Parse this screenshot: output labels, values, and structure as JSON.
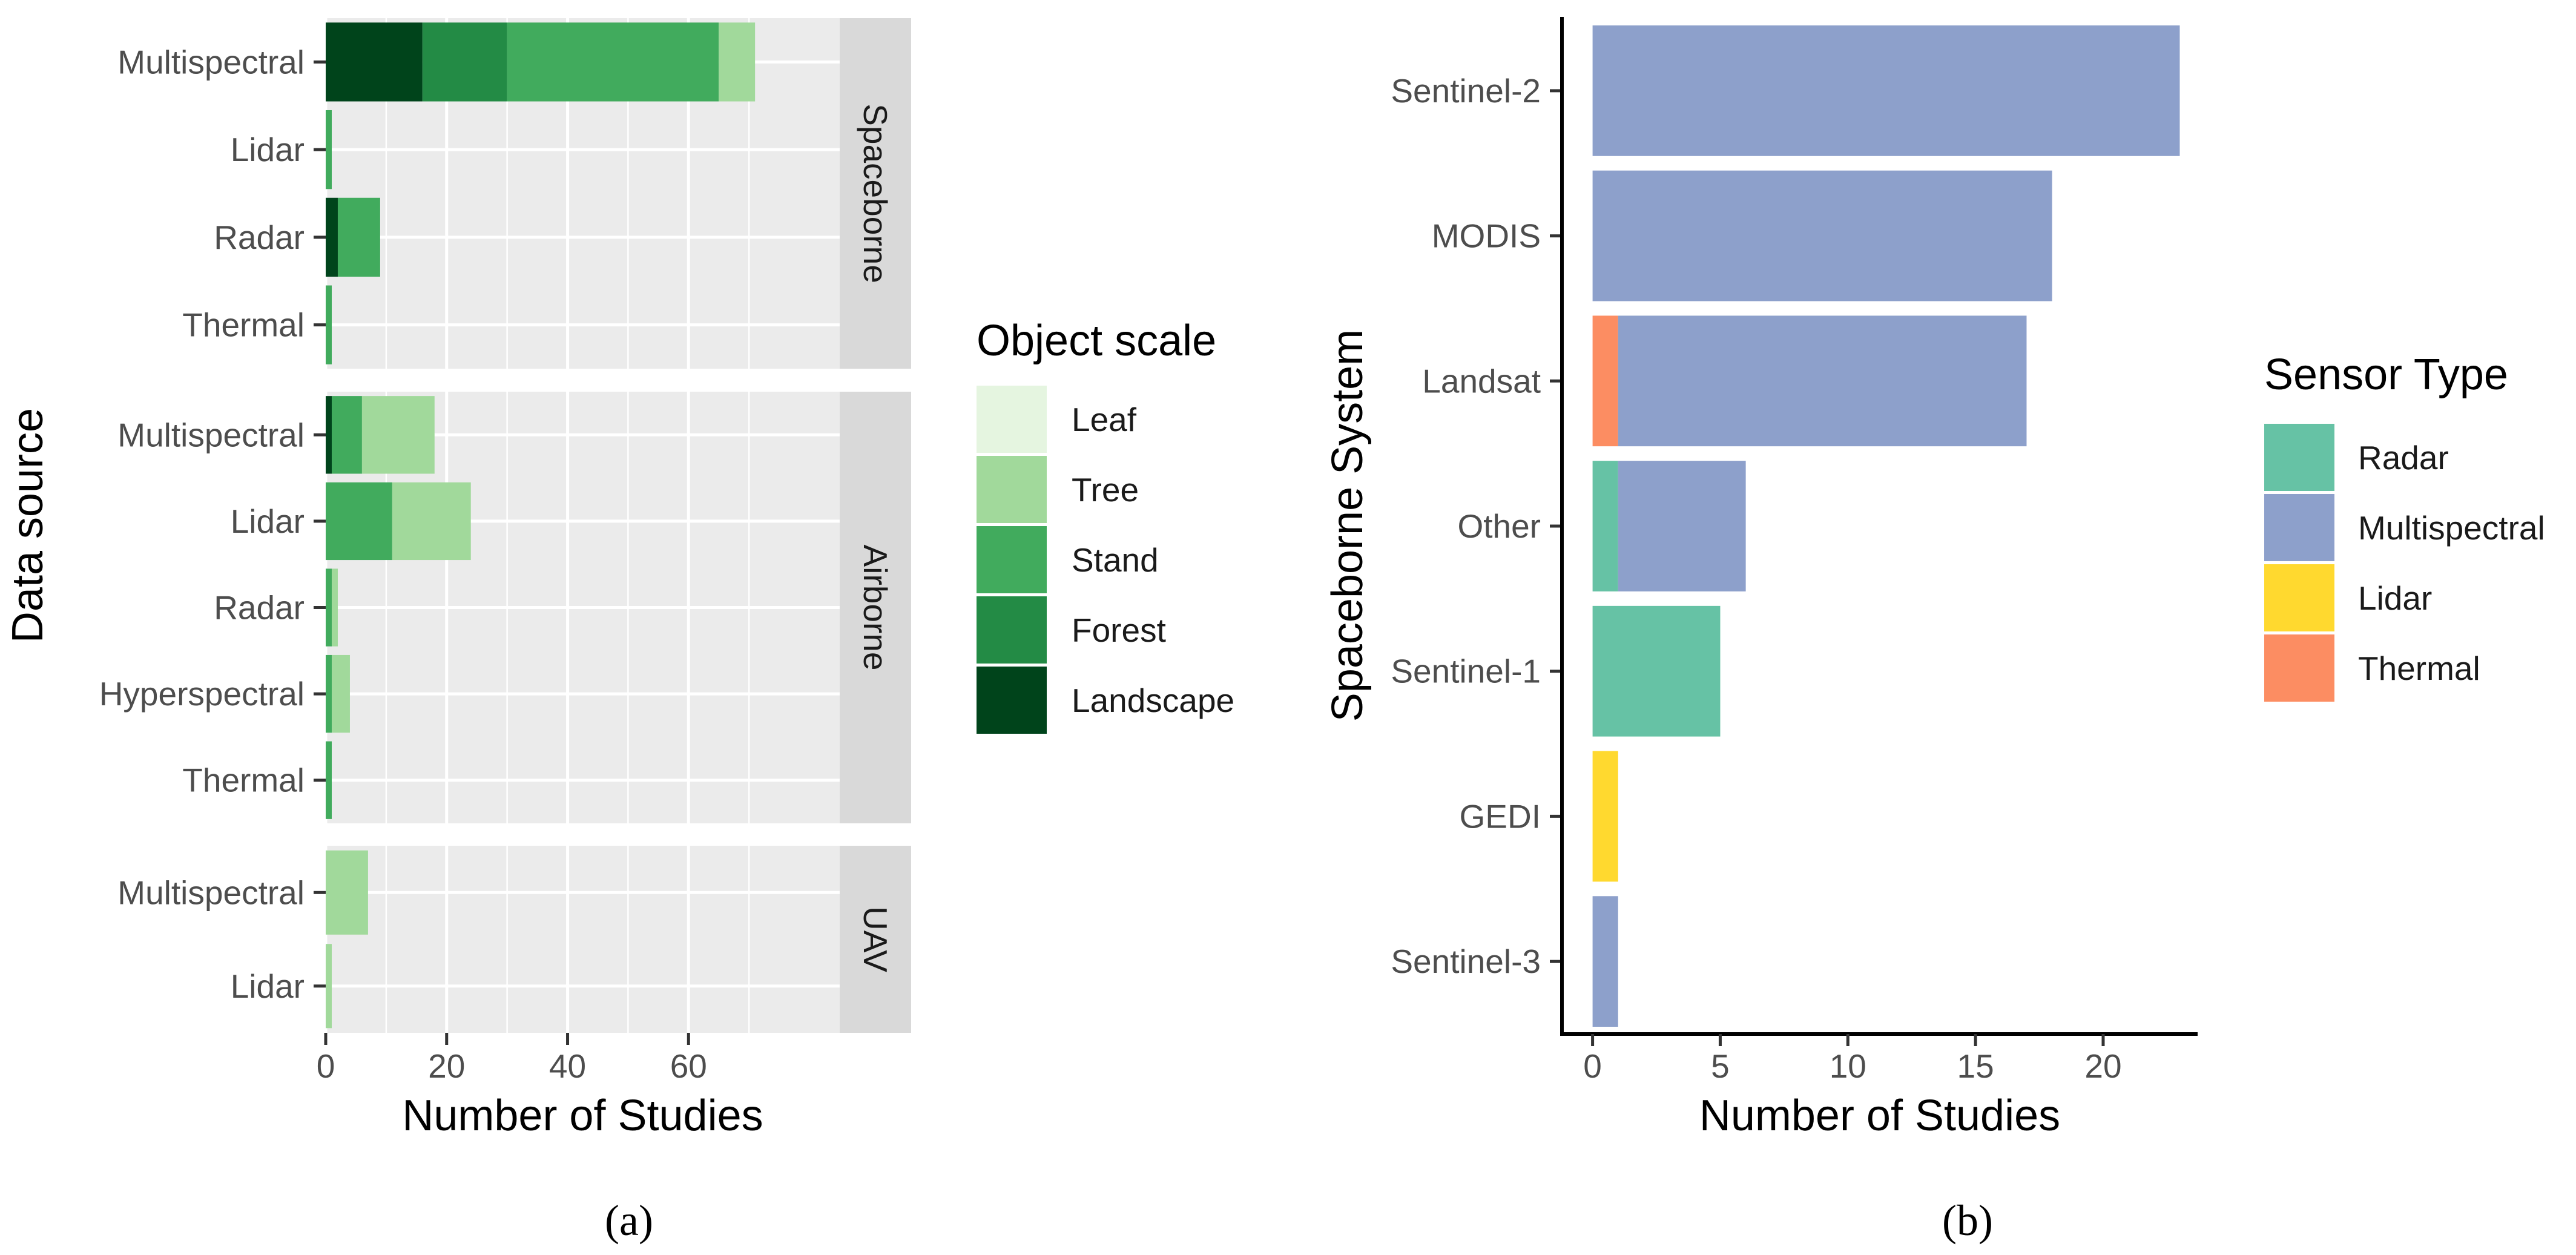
{
  "chart_data": [
    {
      "id": "a",
      "type": "bar",
      "orientation": "horizontal",
      "stacked": true,
      "xlabel": "Number of Studies",
      "ylabel": "Data source",
      "xlim": [
        0,
        85
      ],
      "x_ticks": [
        0,
        20,
        40,
        60
      ],
      "caption": "(a)",
      "legend": {
        "title": "Object scale",
        "items": [
          {
            "name": "Leaf",
            "color": "#e5f5e0"
          },
          {
            "name": "Tree",
            "color": "#a1d99b"
          },
          {
            "name": "Stand",
            "color": "#41ab5d"
          },
          {
            "name": "Forest",
            "color": "#238b45"
          },
          {
            "name": "Landscape",
            "color": "#00441b"
          }
        ]
      },
      "facets": [
        {
          "label": "Spaceborne",
          "categories": [
            "Multispectral",
            "Lidar",
            "Radar",
            "Thermal"
          ],
          "series": [
            {
              "name": "Landscape",
              "values": [
                16,
                0,
                2,
                0
              ]
            },
            {
              "name": "Forest",
              "values": [
                14,
                0,
                0,
                0
              ]
            },
            {
              "name": "Stand",
              "values": [
                35,
                1,
                7,
                1
              ]
            },
            {
              "name": "Tree",
              "values": [
                6,
                0,
                0,
                0
              ]
            },
            {
              "name": "Leaf",
              "values": [
                0,
                0,
                0,
                0
              ]
            }
          ]
        },
        {
          "label": "Airborne",
          "categories": [
            "Multispectral",
            "Lidar",
            "Radar",
            "Hyperspectral",
            "Thermal"
          ],
          "series": [
            {
              "name": "Landscape",
              "values": [
                1,
                0,
                0,
                0,
                0
              ]
            },
            {
              "name": "Forest",
              "values": [
                0,
                0,
                0,
                0,
                0
              ]
            },
            {
              "name": "Stand",
              "values": [
                5,
                11,
                1,
                1,
                1
              ]
            },
            {
              "name": "Tree",
              "values": [
                12,
                13,
                1,
                3,
                0
              ]
            },
            {
              "name": "Leaf",
              "values": [
                0,
                0,
                0,
                0,
                0
              ]
            }
          ]
        },
        {
          "label": "UAV",
          "categories": [
            "Multispectral",
            "Lidar"
          ],
          "series": [
            {
              "name": "Landscape",
              "values": [
                0,
                0
              ]
            },
            {
              "name": "Forest",
              "values": [
                0,
                0
              ]
            },
            {
              "name": "Stand",
              "values": [
                0,
                0
              ]
            },
            {
              "name": "Tree",
              "values": [
                7,
                1
              ]
            },
            {
              "name": "Leaf",
              "values": [
                0,
                0
              ]
            }
          ]
        }
      ]
    },
    {
      "id": "b",
      "type": "bar",
      "orientation": "horizontal",
      "stacked": true,
      "xlabel": "Number of Studies",
      "ylabel": "Spaceborne System",
      "xlim": [
        -1.2,
        23.7
      ],
      "x_ticks": [
        0,
        5,
        10,
        15,
        20
      ],
      "caption": "(b)",
      "categories": [
        "Sentinel-2",
        "MODIS",
        "Landsat",
        "Other",
        "Sentinel-1",
        "GEDI",
        "Sentinel-3"
      ],
      "series": [
        {
          "name": "Thermal",
          "values": [
            0,
            0,
            1,
            0,
            0,
            0,
            0
          ]
        },
        {
          "name": "Radar",
          "values": [
            0,
            0,
            0,
            1,
            5,
            0,
            0
          ]
        },
        {
          "name": "Lidar",
          "values": [
            0,
            0,
            0,
            0,
            0,
            1,
            0
          ]
        },
        {
          "name": "Multispectral",
          "values": [
            23,
            18,
            16,
            5,
            0,
            0,
            1
          ]
        }
      ],
      "legend": {
        "title": "Sensor Type",
        "items": [
          {
            "name": "Radar",
            "color": "#66c2a5"
          },
          {
            "name": "Multispectral",
            "color": "#8da0cb"
          },
          {
            "name": "Lidar",
            "color": "#ffd92f"
          },
          {
            "name": "Thermal",
            "color": "#fc8d62"
          }
        ]
      }
    }
  ]
}
